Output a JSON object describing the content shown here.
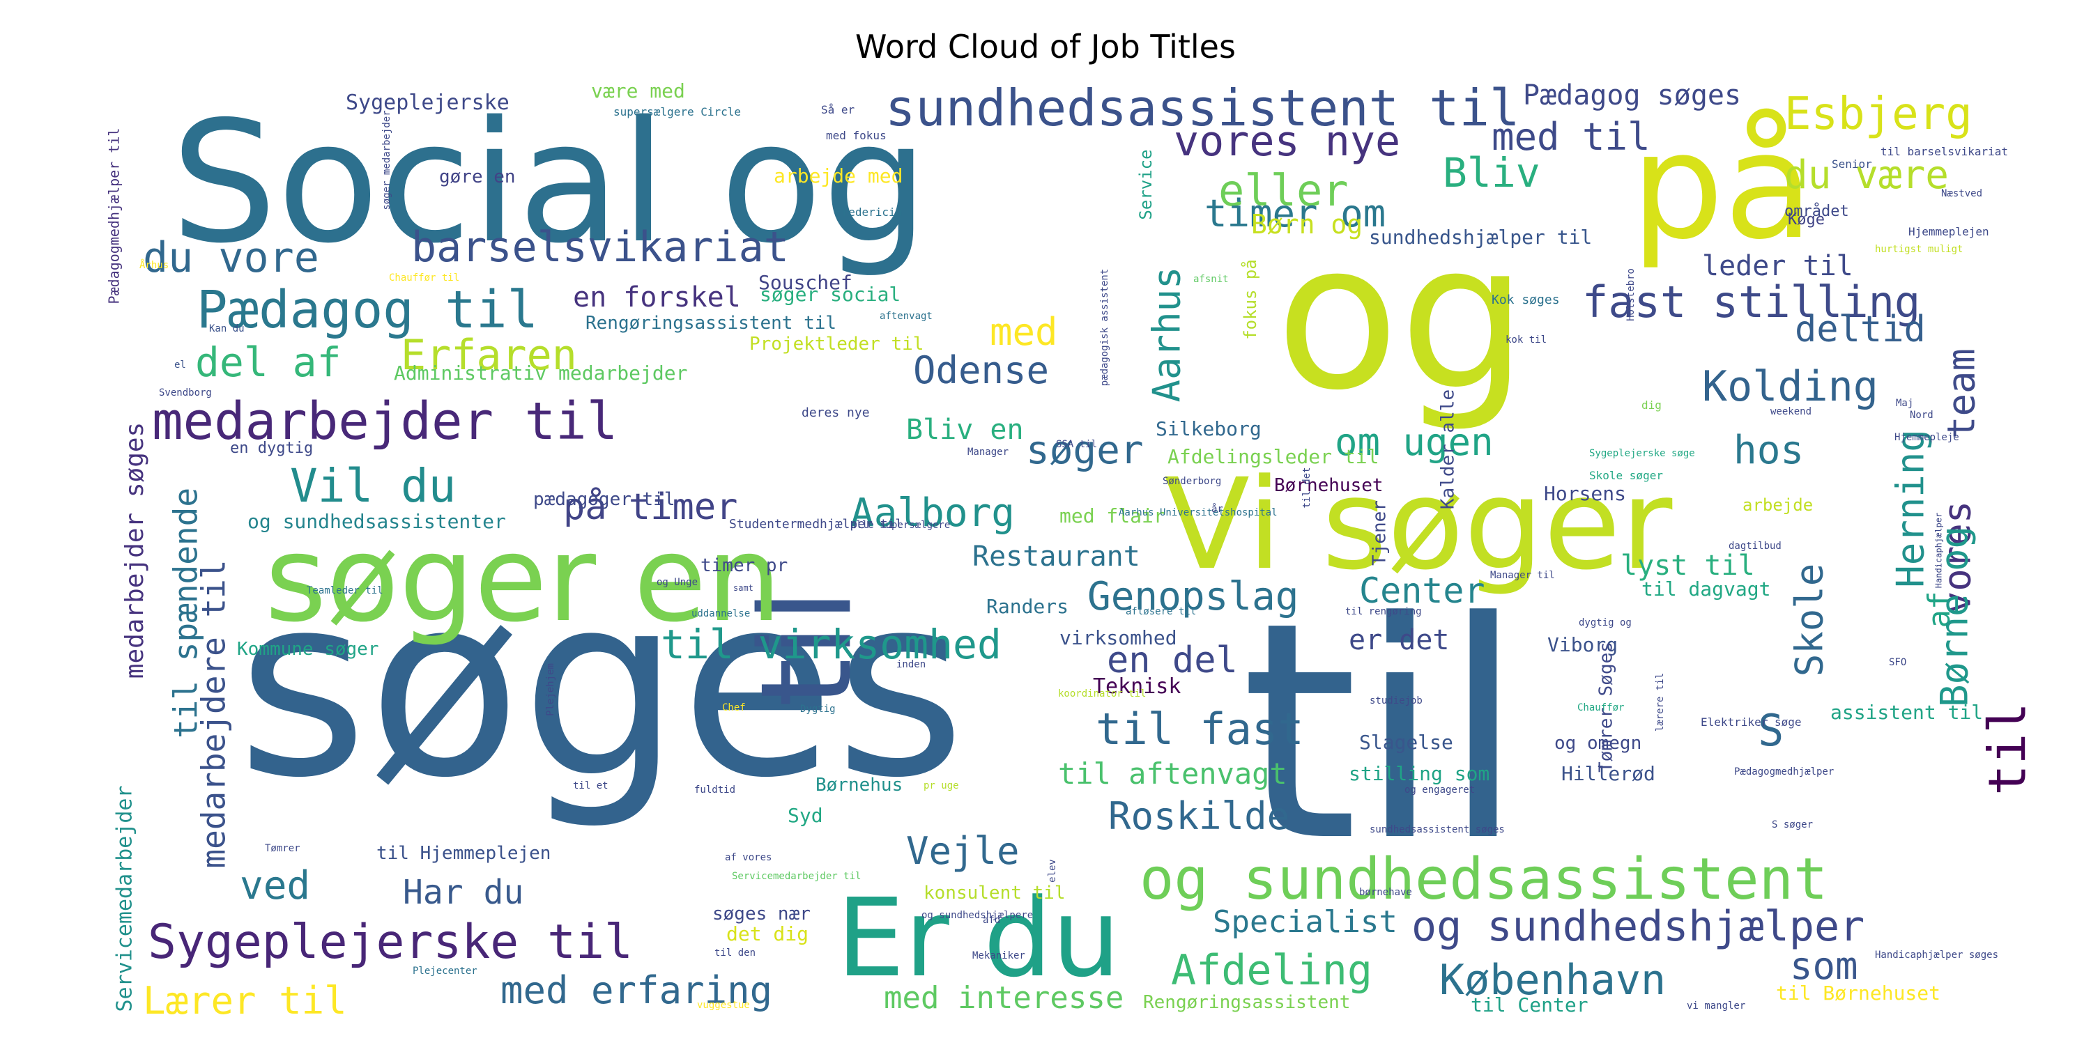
{
  "chart_data": {
    "type": "wordcloud",
    "title": "Word Cloud of Job Titles",
    "background": "#ffffff",
    "colormap": "viridis",
    "words": [
      {
        "text": "søges",
        "weight": 1.0,
        "color": "#33638d"
      },
      {
        "text": "til",
        "weight": 1.0,
        "color": "#33638d"
      },
      {
        "text": "Social og",
        "weight": 0.75,
        "color": "#2d708e"
      },
      {
        "text": "og",
        "weight": 0.78,
        "color": "#c7e020"
      },
      {
        "text": "på",
        "weight": 0.6,
        "color": "#d8e219"
      },
      {
        "text": "til",
        "weight": 0.65,
        "color": "#39568c"
      },
      {
        "text": "søger en",
        "weight": 0.6,
        "color": "#7ad151"
      },
      {
        "text": "Vi søger",
        "weight": 0.55,
        "color": "#c2df23"
      },
      {
        "text": "Er du",
        "weight": 0.55,
        "color": "#1fa187"
      },
      {
        "text": "og sundhedsassistent",
        "weight": 0.3,
        "color": "#6ece58"
      },
      {
        "text": "sundhedsassistent til",
        "weight": 0.26,
        "color": "#3b528b"
      },
      {
        "text": "medarbejder til",
        "weight": 0.26,
        "color": "#482878"
      },
      {
        "text": "Pædagog til",
        "weight": 0.25,
        "color": "#2a788e"
      },
      {
        "text": "Sygeplejerske til",
        "weight": 0.24,
        "color": "#482677"
      },
      {
        "text": "og sundhedshjælper",
        "weight": 0.22,
        "color": "#3e4989"
      },
      {
        "text": "Vil du",
        "weight": 0.22,
        "color": "#228c8d"
      },
      {
        "text": "vores nye",
        "weight": 0.2,
        "color": "#46337e"
      },
      {
        "text": "barselsvikariat",
        "weight": 0.2,
        "color": "#3b528b"
      },
      {
        "text": "du vore",
        "weight": 0.2,
        "color": "#31688e"
      },
      {
        "text": "fast stilling",
        "weight": 0.2,
        "color": "#3e4a89"
      },
      {
        "text": "til virksomhed",
        "weight": 0.2,
        "color": "#1f988b"
      },
      {
        "text": "til fast",
        "weight": 0.2,
        "color": "#31688e"
      },
      {
        "text": "Genopslag",
        "weight": 0.19,
        "color": "#2c728e"
      },
      {
        "text": "Afdeling",
        "weight": 0.19,
        "color": "#3dbc74"
      },
      {
        "text": "København",
        "weight": 0.19,
        "color": "#2c728e"
      },
      {
        "text": "Erfaren",
        "weight": 0.19,
        "color": "#b5de2b"
      },
      {
        "text": "del af",
        "weight": 0.19,
        "color": "#35b779"
      },
      {
        "text": "Aalborg",
        "weight": 0.18,
        "color": "#21918c"
      },
      {
        "text": "Odense",
        "weight": 0.18,
        "color": "#365c8d"
      },
      {
        "text": "Kolding",
        "weight": 0.18,
        "color": "#33638d"
      },
      {
        "text": "Esbjerg",
        "weight": 0.18,
        "color": "#d8e219"
      },
      {
        "text": "du være",
        "weight": 0.18,
        "color": "#b5de2b"
      },
      {
        "text": "Roskilde",
        "weight": 0.17,
        "color": "#31688e"
      },
      {
        "text": "Vejle",
        "weight": 0.17,
        "color": "#31688e"
      },
      {
        "text": "med erfaring",
        "weight": 0.16,
        "color": "#31688e"
      },
      {
        "text": "eller",
        "weight": 0.17,
        "color": "#6ece58"
      },
      {
        "text": "Bliv",
        "weight": 0.17,
        "color": "#29af7f"
      },
      {
        "text": "timer om",
        "weight": 0.16,
        "color": "#2a788e"
      },
      {
        "text": "med til",
        "weight": 0.16,
        "color": "#3e4a89"
      },
      {
        "text": "Pædagog søges",
        "weight": 0.13,
        "color": "#3e4989"
      },
      {
        "text": "søger",
        "weight": 0.17,
        "color": "#31688e"
      },
      {
        "text": "på timer",
        "weight": 0.17,
        "color": "#414487"
      },
      {
        "text": "en del",
        "weight": 0.17,
        "color": "#3e4989"
      },
      {
        "text": "om ugen",
        "weight": 0.17,
        "color": "#20a486"
      },
      {
        "text": "hos",
        "weight": 0.17,
        "color": "#2a788e"
      },
      {
        "text": "deltid",
        "weight": 0.17,
        "color": "#355f8d"
      },
      {
        "text": "Center",
        "weight": 0.16,
        "color": "#25858e"
      },
      {
        "text": "ved",
        "weight": 0.17,
        "color": "#2a788e"
      },
      {
        "text": "Har du",
        "weight": 0.15,
        "color": "#38598c"
      },
      {
        "text": "Lærer til",
        "weight": 0.15,
        "color": "#fde725"
      },
      {
        "text": "til aftenvagt",
        "weight": 0.13,
        "color": "#4ac16d"
      },
      {
        "text": "Specialist",
        "weight": 0.13,
        "color": "#2a788e"
      },
      {
        "text": "med interesse",
        "weight": 0.13,
        "color": "#5ec962"
      },
      {
        "text": "som",
        "weight": 0.15,
        "color": "#39568c"
      },
      {
        "text": "med",
        "weight": 0.15,
        "color": "#fde725"
      },
      {
        "text": "Restaurant",
        "weight": 0.13,
        "color": "#2c728e"
      },
      {
        "text": "Bliv en",
        "weight": 0.13,
        "color": "#29af7f"
      },
      {
        "text": "Børn og",
        "weight": 0.13,
        "color": "#c7e020"
      },
      {
        "text": "leder til",
        "weight": 0.12,
        "color": "#3e4989"
      },
      {
        "text": "lyst til",
        "weight": 0.12,
        "color": "#29af7f"
      },
      {
        "text": "er det",
        "weight": 0.12,
        "color": "#3e4989"
      },
      {
        "text": "en forskel",
        "weight": 0.12,
        "color": "#46337e"
      },
      {
        "text": "S",
        "weight": 0.14,
        "color": "#31688e"
      },
      {
        "text": "af",
        "weight": 0.14,
        "color": "#20a486"
      },
      {
        "text": "team",
        "weight": 0.15,
        "color": "#3e4a89"
      },
      {
        "text": "Aarhus",
        "weight": 0.15,
        "color": "#21918c"
      },
      {
        "text": "vores",
        "weight": 0.16,
        "color": "#46337e"
      },
      {
        "text": "til",
        "weight": 0.2,
        "color": "#440154"
      },
      {
        "text": "Børne og",
        "weight": 0.16,
        "color": "#1f988b"
      },
      {
        "text": "Skole",
        "weight": 0.16,
        "color": "#31688e"
      },
      {
        "text": "Herning",
        "weight": 0.16,
        "color": "#21918c"
      },
      {
        "text": "medarbejder søges",
        "weight": 0.13,
        "color": "#46337e"
      },
      {
        "text": "til spændende",
        "weight": 0.15,
        "color": "#2c728e"
      },
      {
        "text": "medarbejdere til",
        "weight": 0.15,
        "color": "#3b528b"
      },
      {
        "text": "Servicemedarbejder",
        "weight": 0.08,
        "color": "#21918c"
      },
      {
        "text": "Sygeplejerske",
        "weight": 0.08,
        "color": "#3e4989"
      },
      {
        "text": "være med",
        "weight": 0.07,
        "color": "#7ad151"
      },
      {
        "text": "arbejde med",
        "weight": 0.07,
        "color": "#fde725"
      },
      {
        "text": "gøre en",
        "weight": 0.06,
        "color": "#414487"
      },
      {
        "text": "Souschef",
        "weight": 0.07,
        "color": "#414487"
      },
      {
        "text": "søger social",
        "weight": 0.07,
        "color": "#29af7f"
      },
      {
        "text": "Rengøringsassistent til",
        "weight": 0.07,
        "color": "#2c728e"
      },
      {
        "text": "Projektleder til",
        "weight": 0.07,
        "color": "#c2df23"
      },
      {
        "text": "Administrativ medarbejder",
        "weight": 0.07,
        "color": "#5ec962"
      },
      {
        "text": "pædagoger til",
        "weight": 0.06,
        "color": "#3e4989"
      },
      {
        "text": "og sundhedsassistenter",
        "weight": 0.07,
        "color": "#25858e"
      },
      {
        "text": "Kommune søger",
        "weight": 0.07,
        "color": "#20a486"
      },
      {
        "text": "Randers",
        "weight": 0.07,
        "color": "#2c728e"
      },
      {
        "text": "virksomhed",
        "weight": 0.07,
        "color": "#3b528b"
      },
      {
        "text": "Teknisk",
        "weight": 0.07,
        "color": "#440154"
      },
      {
        "text": "Slagelse",
        "weight": 0.07,
        "color": "#39568c"
      },
      {
        "text": "stilling som",
        "weight": 0.07,
        "color": "#20a486"
      },
      {
        "text": "Syd",
        "weight": 0.07,
        "color": "#22a884"
      },
      {
        "text": "til Hjemmeplejen",
        "weight": 0.07,
        "color": "#3b528b"
      },
      {
        "text": "Børnehus",
        "weight": 0.07,
        "color": "#21918c"
      },
      {
        "text": "konsulent til",
        "weight": 0.07,
        "color": "#b5de2b"
      },
      {
        "text": "søges nær",
        "weight": 0.07,
        "color": "#3e4989"
      },
      {
        "text": "det dig",
        "weight": 0.07,
        "color": "#d8e219"
      },
      {
        "text": "Rengøringsassistent",
        "weight": 0.07,
        "color": "#7ad151"
      },
      {
        "text": "til Center",
        "weight": 0.07,
        "color": "#1fa187"
      },
      {
        "text": "til Børnehuset",
        "weight": 0.07,
        "color": "#fde725"
      },
      {
        "text": "Silkeborg",
        "weight": 0.07,
        "color": "#31688e"
      },
      {
        "text": "Afdelingsleder til",
        "weight": 0.07,
        "color": "#7ad151"
      },
      {
        "text": "Børnehuset",
        "weight": 0.07,
        "color": "#440154"
      },
      {
        "text": "med flair",
        "weight": 0.07,
        "color": "#7ad151"
      },
      {
        "text": "timer pr",
        "weight": 0.07,
        "color": "#3e4989"
      },
      {
        "text": "Horsens",
        "weight": 0.07,
        "color": "#3e4989"
      },
      {
        "text": "Viborg",
        "weight": 0.07,
        "color": "#3b528b"
      },
      {
        "text": "og omegn",
        "weight": 0.07,
        "color": "#3e4989"
      },
      {
        "text": "Hillerød",
        "weight": 0.07,
        "color": "#3b528b"
      },
      {
        "text": "sundhedshjælper til",
        "weight": 0.07,
        "color": "#39568c"
      },
      {
        "text": "området",
        "weight": 0.06,
        "color": "#3e4989"
      },
      {
        "text": "Køge",
        "weight": 0.06,
        "color": "#414487"
      },
      {
        "text": "assistent til",
        "weight": 0.07,
        "color": "#20a486"
      },
      {
        "text": "arbejde",
        "weight": 0.06,
        "color": "#c2df23"
      },
      {
        "text": "Tjener",
        "weight": 0.06,
        "color": "#3e4989"
      },
      {
        "text": "til dagvagt",
        "weight": 0.07,
        "color": "#22a884"
      },
      {
        "text": "Kalder alle",
        "weight": 0.06,
        "color": "#3e4989"
      },
      {
        "text": "Service",
        "weight": 0.06,
        "color": "#1fa187"
      },
      {
        "text": "fokus på",
        "weight": 0.06,
        "color": "#b5de2b"
      },
      {
        "text": "Tømrer Søges",
        "weight": 0.06,
        "color": "#3e4989"
      },
      {
        "text": "en dygtig",
        "weight": 0.05,
        "color": "#3e4989"
      },
      {
        "text": "Pædagogmedhjælper til",
        "weight": 0.05,
        "color": "#46337e"
      },
      {
        "text": "Så er",
        "weight": 0.04,
        "color": "#3e4989"
      },
      {
        "text": "med fokus",
        "weight": 0.04,
        "color": "#3e4989"
      },
      {
        "text": "supersælgere Circle",
        "weight": 0.04,
        "color": "#2c728e"
      },
      {
        "text": "søger medarbejder",
        "weight": 0.03,
        "color": "#3e4989"
      },
      {
        "text": "Fredericia",
        "weight": 0.04,
        "color": "#2c728e"
      },
      {
        "text": "Chauffør til",
        "weight": 0.03,
        "color": "#fde725"
      },
      {
        "text": "Senior",
        "weight": 0.03,
        "color": "#3b528b"
      },
      {
        "text": "til barselsvikariat",
        "weight": 0.03,
        "color": "#3e4989"
      },
      {
        "text": "Hjemmeplejen",
        "weight": 0.03,
        "color": "#3e4989"
      },
      {
        "text": "Næstved",
        "weight": 0.03,
        "color": "#3e4989"
      },
      {
        "text": "hurtigst muligt",
        "weight": 0.03,
        "color": "#c2df23"
      },
      {
        "text": "Kok søges",
        "weight": 0.03,
        "color": "#2c728e"
      },
      {
        "text": "kok til",
        "weight": 0.03,
        "color": "#3e4989"
      },
      {
        "text": "Holstebro",
        "weight": 0.03,
        "color": "#3e4989"
      },
      {
        "text": "afsnit",
        "weight": 0.03,
        "color": "#5ec962"
      },
      {
        "text": "aftenvagt",
        "weight": 0.03,
        "color": "#2c728e"
      },
      {
        "text": "Kan du",
        "weight": 0.03,
        "color": "#3b528b"
      },
      {
        "text": "Århus",
        "weight": 0.03,
        "color": "#fde725"
      },
      {
        "text": "el",
        "weight": 0.03,
        "color": "#3b528b"
      },
      {
        "text": "Svendborg",
        "weight": 0.03,
        "color": "#3e4989"
      },
      {
        "text": "Manager",
        "weight": 0.03,
        "color": "#3e4989"
      },
      {
        "text": "SSA til",
        "weight": 0.03,
        "color": "#3e4989"
      },
      {
        "text": "deres nye",
        "weight": 0.04,
        "color": "#3e4989"
      },
      {
        "text": "pædagogisk assistent",
        "weight": 0.03,
        "color": "#3e4989"
      },
      {
        "text": "Sønderborg",
        "weight": 0.03,
        "color": "#3e4989"
      },
      {
        "text": "Skole søger",
        "weight": 0.03,
        "color": "#22a884"
      },
      {
        "text": "Sygeplejerske søge",
        "weight": 0.03,
        "color": "#22a884"
      },
      {
        "text": "dig",
        "weight": 0.03,
        "color": "#7ad151"
      },
      {
        "text": "weekend",
        "weight": 0.03,
        "color": "#3e4989"
      },
      {
        "text": "Maj",
        "weight": 0.03,
        "color": "#3e4989"
      },
      {
        "text": "Nord",
        "weight": 0.03,
        "color": "#3e4989"
      },
      {
        "text": "Hjemmepleje",
        "weight": 0.03,
        "color": "#3e4989"
      },
      {
        "text": "Studentermedhjælper til",
        "weight": 0.04,
        "color": "#3e4989"
      },
      {
        "text": "alle supersælgere",
        "weight": 0.03,
        "color": "#3e4989"
      },
      {
        "text": "Aarhus Universitetshospital",
        "weight": 0.03,
        "color": "#2c728e"
      },
      {
        "text": "år",
        "weight": 0.03,
        "color": "#3e4989"
      },
      {
        "text": "til det",
        "weight": 0.03,
        "color": "#3e4989"
      },
      {
        "text": "dagtilbud",
        "weight": 0.03,
        "color": "#3e4989"
      },
      {
        "text": "og Unge",
        "weight": 0.03,
        "color": "#3e4989"
      },
      {
        "text": "samt",
        "weight": 0.03,
        "color": "#3e4989"
      },
      {
        "text": "uddannelse",
        "weight": 0.03,
        "color": "#2c728e"
      },
      {
        "text": "Teamleder til",
        "weight": 0.03,
        "color": "#2c728e"
      },
      {
        "text": "afløsere til",
        "weight": 0.03,
        "color": "#2c728e"
      },
      {
        "text": "til rengøring",
        "weight": 0.03,
        "color": "#3e4989"
      },
      {
        "text": "Manager til",
        "weight": 0.03,
        "color": "#3e4989"
      },
      {
        "text": "dygtig og",
        "weight": 0.03,
        "color": "#3e4989"
      },
      {
        "text": "SFO",
        "weight": 0.03,
        "color": "#3e4989"
      },
      {
        "text": "Plejehjem",
        "weight": 0.03,
        "color": "#3e4989"
      },
      {
        "text": "inden",
        "weight": 0.03,
        "color": "#3e4989"
      },
      {
        "text": "koordinator til",
        "weight": 0.03,
        "color": "#b5de2b"
      },
      {
        "text": "studiejob",
        "weight": 0.03,
        "color": "#3e4989"
      },
      {
        "text": "Chef",
        "weight": 0.03,
        "color": "#fde725"
      },
      {
        "text": "Dygtig",
        "weight": 0.03,
        "color": "#2c728e"
      },
      {
        "text": "Chauffør",
        "weight": 0.03,
        "color": "#22a884"
      },
      {
        "text": "lærere til",
        "weight": 0.03,
        "color": "#3e4989"
      },
      {
        "text": "Elektriker søge",
        "weight": 0.03,
        "color": "#3e4989"
      },
      {
        "text": "Pædagogmedhjælper",
        "weight": 0.03,
        "color": "#3e4989"
      },
      {
        "text": "til et",
        "weight": 0.03,
        "color": "#3e4989"
      },
      {
        "text": "fuldtid",
        "weight": 0.03,
        "color": "#3e4989"
      },
      {
        "text": "pr uge",
        "weight": 0.03,
        "color": "#b5de2b"
      },
      {
        "text": "og engageret",
        "weight": 0.03,
        "color": "#3e4989"
      },
      {
        "text": "S søger",
        "weight": 0.03,
        "color": "#3e4989"
      },
      {
        "text": "Tømrer",
        "weight": 0.03,
        "color": "#3e4989"
      },
      {
        "text": "sundhedsassistent søges",
        "weight": 0.03,
        "color": "#3e4989"
      },
      {
        "text": "af vores",
        "weight": 0.03,
        "color": "#3e4989"
      },
      {
        "text": "Servicemedarbejder til",
        "weight": 0.03,
        "color": "#5ec962"
      },
      {
        "text": "elev",
        "weight": 0.03,
        "color": "#3e4989"
      },
      {
        "text": "børnehave",
        "weight": 0.03,
        "color": "#3e4989"
      },
      {
        "text": "og sundhedshjælpere",
        "weight": 0.03,
        "color": "#3e4989"
      },
      {
        "text": "afd",
        "weight": 0.03,
        "color": "#3e4989"
      },
      {
        "text": "til den",
        "weight": 0.03,
        "color": "#3e4989"
      },
      {
        "text": "Mekaniker",
        "weight": 0.03,
        "color": "#3e4989"
      },
      {
        "text": "Plejecenter",
        "weight": 0.03,
        "color": "#2c728e"
      },
      {
        "text": "vuggestue",
        "weight": 0.03,
        "color": "#fde725"
      },
      {
        "text": "Handicaphjælper søges",
        "weight": 0.03,
        "color": "#3e4989"
      },
      {
        "text": "vi mangler",
        "weight": 0.03,
        "color": "#3e4989"
      },
      {
        "text": "Handicaphjælper",
        "weight": 0.03,
        "color": "#3e4989"
      },
      {
        "text": "søger ny",
        "weight": 0.03,
        "color": "#3e4989"
      }
    ]
  }
}
